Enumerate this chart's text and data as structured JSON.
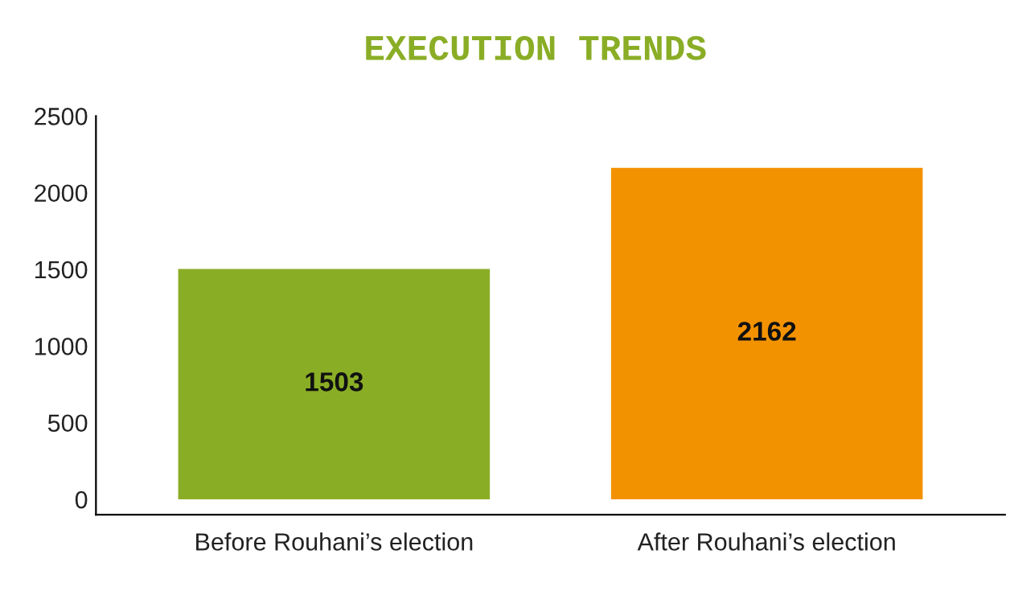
{
  "chart_data": {
    "type": "bar",
    "title": "EXECUTION TRENDS",
    "categories": [
      "Before Rouhani’s election",
      "After Rouhani’s election"
    ],
    "values": [
      1503,
      2162
    ],
    "colors": [
      "#8aad26",
      "#f39200"
    ],
    "ylim": [
      -100,
      2500
    ],
    "yticks": [
      0,
      500,
      1000,
      1500,
      2000,
      2500
    ],
    "data_labels": true,
    "grid": false,
    "legend": false
  }
}
